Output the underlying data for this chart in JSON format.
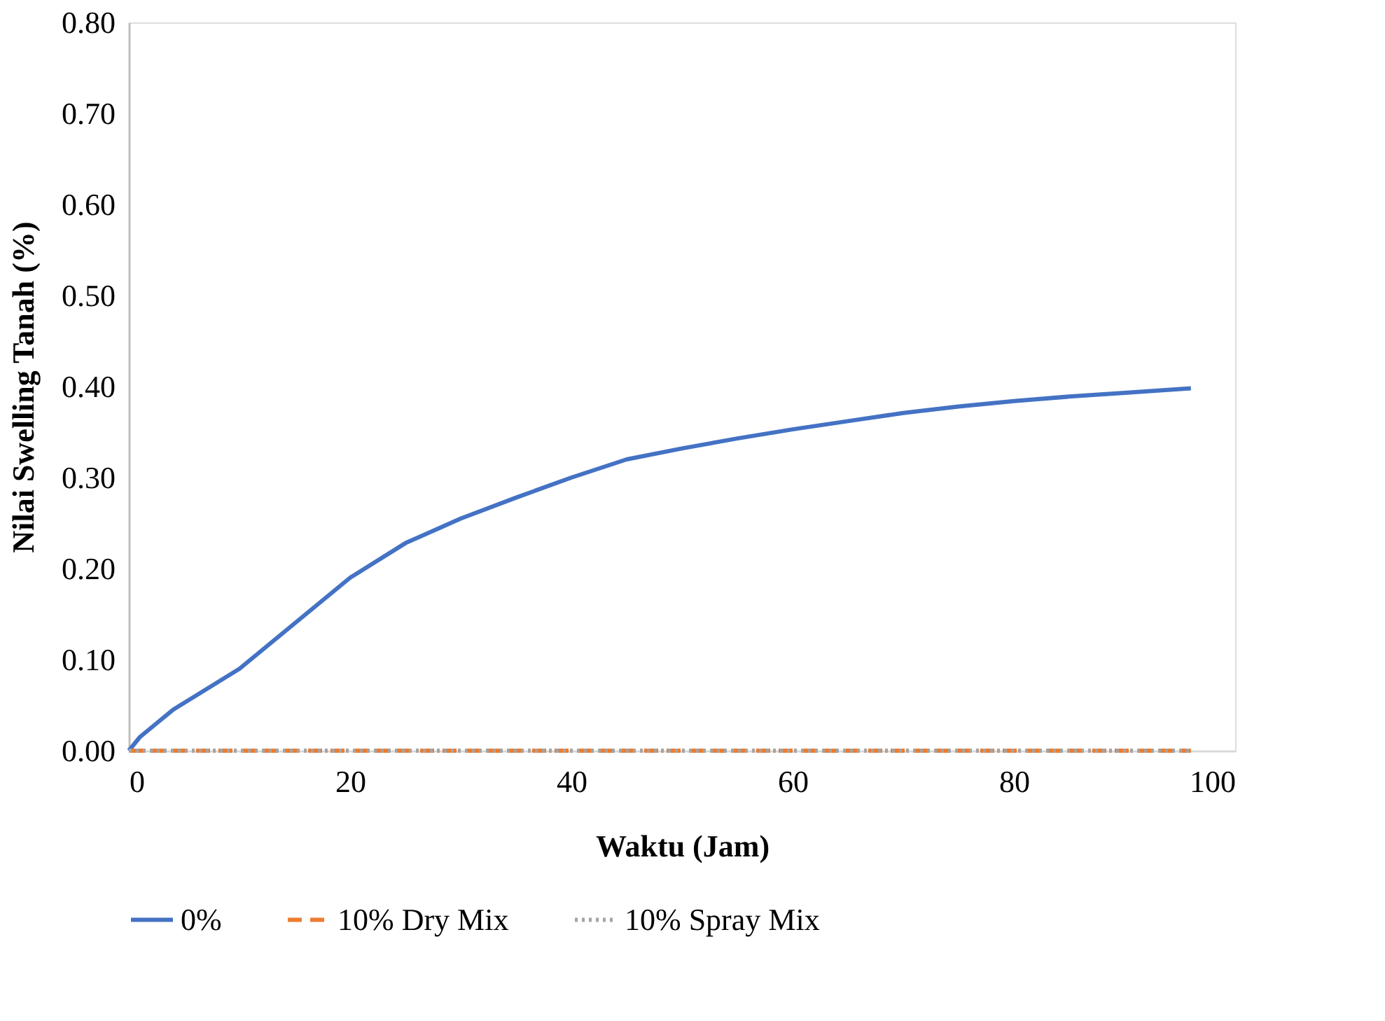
{
  "chart_data": {
    "type": "line",
    "xlabel": "Waktu (Jam)",
    "ylabel": "Nilai Swelling Tanah (%)",
    "xlim": [
      0,
      100
    ],
    "xticks": [
      0,
      20,
      40,
      60,
      80,
      100
    ],
    "ylim": [
      0,
      0.8
    ],
    "yticks": [
      {
        "value": 0,
        "label": "0.00"
      },
      {
        "value": 0.1,
        "label": "0.10"
      },
      {
        "value": 0.2,
        "label": "0.20"
      },
      {
        "value": 0.3,
        "label": "0.30"
      },
      {
        "value": 0.4,
        "label": "0.40"
      },
      {
        "value": 0.5,
        "label": "0.50"
      },
      {
        "value": 0.6,
        "label": "0.60"
      },
      {
        "value": 0.7,
        "label": "0.70"
      },
      {
        "value": 0.8,
        "label": "0.80"
      }
    ],
    "grid": false,
    "legend": "bottom",
    "marker": "none",
    "series": [
      {
        "name": "0%",
        "color": "#4472c4",
        "line_style": "solid",
        "x": [
          0,
          1,
          2,
          4,
          6,
          8,
          10,
          12,
          15,
          20,
          25,
          30,
          35,
          40,
          45,
          50,
          55,
          60,
          65,
          70,
          75,
          80,
          85,
          90,
          96
        ],
        "values": [
          0,
          0.015,
          0.025,
          0.045,
          0.06,
          0.075,
          0.09,
          0.11,
          0.14,
          0.19,
          0.228,
          0.255,
          0.278,
          0.3,
          0.32,
          0.332,
          0.343,
          0.353,
          0.362,
          0.371,
          0.378,
          0.384,
          0.389,
          0.393,
          0.398
        ]
      },
      {
        "name": "10% Dry Mix",
        "color": "#ed7d31",
        "line_style": "dashed",
        "x": [
          0,
          24,
          48,
          72,
          96
        ],
        "values": [
          0,
          0,
          0,
          0,
          0
        ]
      },
      {
        "name": "10% Spray Mix",
        "color": "#a5a5a5",
        "line_style": "dotted",
        "x": [
          0,
          24,
          48,
          72,
          96
        ],
        "values": [
          0,
          0,
          0,
          0,
          0
        ]
      }
    ]
  }
}
